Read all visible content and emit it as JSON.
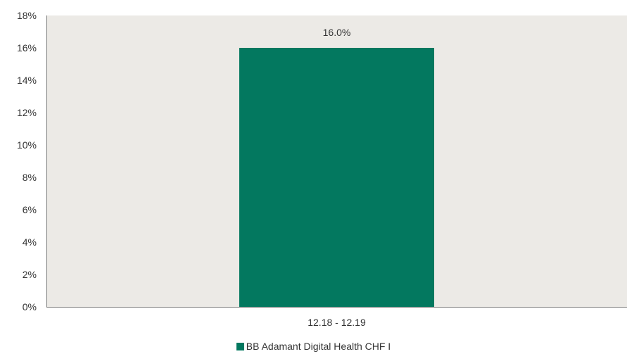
{
  "chart_data": {
    "type": "bar",
    "categories": [
      "12.18 - 12.19"
    ],
    "series": [
      {
        "name": "BB Adamant Digital Health CHF I",
        "values": [
          16.0
        ],
        "color": "#03785F"
      }
    ],
    "data_labels": [
      "16.0%"
    ],
    "ylim": [
      0,
      18
    ],
    "yticks": [
      0,
      2,
      4,
      6,
      8,
      10,
      12,
      14,
      16,
      18
    ],
    "ytick_labels": [
      "0%",
      "2%",
      "4%",
      "6%",
      "8%",
      "10%",
      "12%",
      "14%",
      "16%",
      "18%"
    ],
    "plot_background": "#ECEAE6",
    "grid": false,
    "legend_position": "bottom-center"
  }
}
